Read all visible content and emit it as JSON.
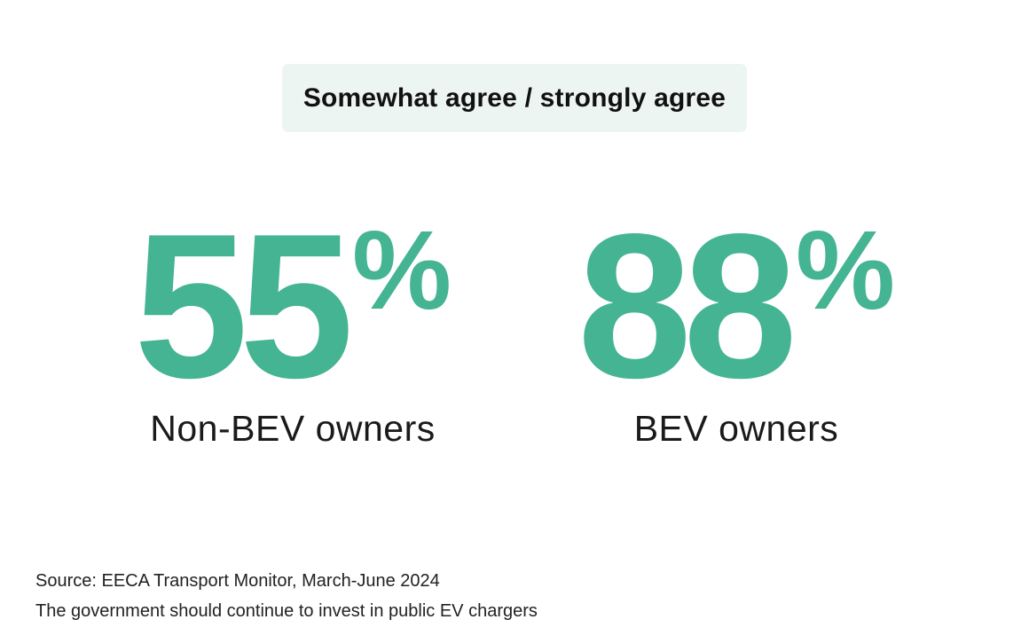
{
  "chart_data": {
    "type": "table",
    "title": "Somewhat agree / strongly agree",
    "categories": [
      "Non-BEV owners",
      "BEV owners"
    ],
    "values": [
      55,
      88
    ],
    "unit": "%",
    "colors": {
      "number": "#44b493",
      "header_background": "#edf5f3"
    }
  },
  "stats": [
    {
      "digits": "55",
      "symbol": "%",
      "label": "Non-BEV owners"
    },
    {
      "digits": "88",
      "symbol": "%",
      "label": "BEV owners"
    }
  ],
  "footer": {
    "source": "Source: EECA Transport Monitor, March-June 2024",
    "question": "The government should continue to invest in public EV chargers"
  }
}
